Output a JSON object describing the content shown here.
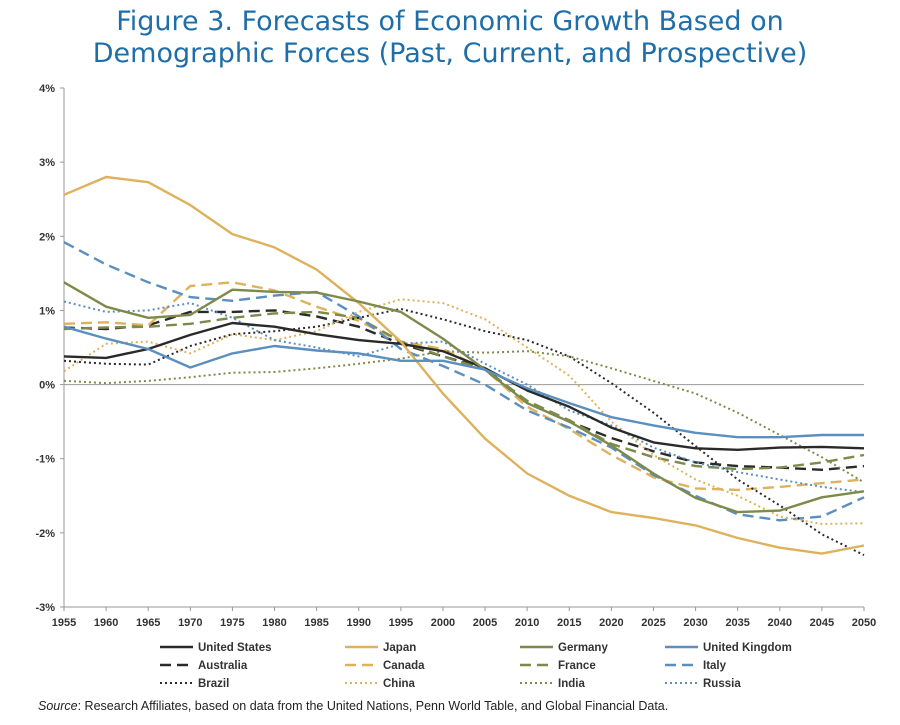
{
  "title_line1": "Figure 3. Forecasts of Economic Growth Based on",
  "title_line2": "Demographic Forces (Past, Current, and Prospective)",
  "source_label": "Source",
  "source_text": ": Research Affiliates, based on data from the United Nations, Penn World Table, and Global Financial Data.",
  "chart_data": {
    "type": "line",
    "x": [
      1955,
      1960,
      1965,
      1970,
      1975,
      1980,
      1985,
      1990,
      1995,
      2000,
      2005,
      2010,
      2015,
      2020,
      2025,
      2030,
      2035,
      2040,
      2045,
      2050
    ],
    "ylim": [
      -3,
      4
    ],
    "y_ticks": [
      4,
      3,
      2,
      1,
      0,
      -1,
      -2,
      -3
    ],
    "y_tick_labels": [
      "4%",
      "3%",
      "2%",
      "1%",
      "0%",
      "-1%",
      "-2%",
      "-3%"
    ],
    "x_tick_labels": [
      "1955",
      "1960",
      "1965",
      "1970",
      "1975",
      "1980",
      "1985",
      "1990",
      "1995",
      "2000",
      "2005",
      "2010",
      "2015",
      "2020",
      "2025",
      "2030",
      "2035",
      "2040",
      "2045",
      "2050"
    ],
    "grid": false,
    "legend_position": "bottom",
    "series": [
      {
        "name": "United States",
        "color": "#2a2a2a",
        "dash": "solid",
        "values": [
          0.38,
          0.36,
          0.48,
          0.67,
          0.83,
          0.78,
          0.68,
          0.6,
          0.55,
          0.45,
          0.22,
          -0.08,
          -0.3,
          -0.58,
          -0.78,
          -0.86,
          -0.88,
          -0.85,
          -0.84,
          -0.86
        ]
      },
      {
        "name": "Japan",
        "color": "#deb15c",
        "dash": "solid",
        "values": [
          2.56,
          2.8,
          2.73,
          2.42,
          2.03,
          1.85,
          1.55,
          1.1,
          0.58,
          -0.12,
          -0.73,
          -1.2,
          -1.5,
          -1.72,
          -1.8,
          -1.9,
          -2.07,
          -2.2,
          -2.28,
          -2.17
        ]
      },
      {
        "name": "Germany",
        "color": "#7d8a4b",
        "dash": "solid",
        "values": [
          1.38,
          1.05,
          0.9,
          0.94,
          1.28,
          1.25,
          1.24,
          1.12,
          0.98,
          0.62,
          0.2,
          -0.25,
          -0.5,
          -0.82,
          -1.2,
          -1.53,
          -1.72,
          -1.7,
          -1.52,
          -1.44
        ]
      },
      {
        "name": "United Kingdom",
        "color": "#5a8fc0",
        "dash": "solid",
        "values": [
          0.78,
          0.62,
          0.48,
          0.23,
          0.42,
          0.52,
          0.46,
          0.42,
          0.32,
          0.32,
          0.2,
          -0.05,
          -0.25,
          -0.44,
          -0.55,
          -0.65,
          -0.71,
          -0.71,
          -0.68,
          -0.68
        ]
      },
      {
        "name": "Australia",
        "color": "#2a2a2a",
        "dash": "dash",
        "values": [
          0.77,
          0.75,
          0.8,
          0.98,
          0.98,
          1.0,
          0.92,
          0.78,
          0.55,
          0.38,
          0.22,
          -0.25,
          -0.5,
          -0.72,
          -0.9,
          -1.05,
          -1.1,
          -1.12,
          -1.15,
          -1.1
        ]
      },
      {
        "name": "Canada",
        "color": "#deb15c",
        "dash": "dash",
        "values": [
          0.82,
          0.84,
          0.8,
          1.33,
          1.38,
          1.27,
          1.05,
          0.86,
          0.58,
          0.48,
          0.2,
          -0.3,
          -0.6,
          -0.95,
          -1.25,
          -1.4,
          -1.42,
          -1.38,
          -1.33,
          -1.28
        ]
      },
      {
        "name": "France",
        "color": "#7d8a4b",
        "dash": "dash",
        "values": [
          0.75,
          0.77,
          0.78,
          0.82,
          0.9,
          0.96,
          0.98,
          0.9,
          0.58,
          0.38,
          0.2,
          -0.22,
          -0.48,
          -0.8,
          -0.98,
          -1.1,
          -1.14,
          -1.12,
          -1.05,
          -0.95
        ]
      },
      {
        "name": "Italy",
        "color": "#5a8fc0",
        "dash": "dash",
        "values": [
          1.92,
          1.62,
          1.38,
          1.18,
          1.13,
          1.2,
          1.25,
          0.92,
          0.48,
          0.25,
          0.0,
          -0.35,
          -0.58,
          -0.85,
          -1.22,
          -1.5,
          -1.75,
          -1.83,
          -1.78,
          -1.52
        ]
      },
      {
        "name": "Brazil",
        "color": "#2a2a2a",
        "dash": "dot",
        "values": [
          0.32,
          0.28,
          0.27,
          0.52,
          0.68,
          0.72,
          0.78,
          0.9,
          1.02,
          0.88,
          0.72,
          0.6,
          0.38,
          0.02,
          -0.38,
          -0.83,
          -1.28,
          -1.63,
          -2.02,
          -2.3
        ]
      },
      {
        "name": "China",
        "color": "#deb15c",
        "dash": "dot",
        "values": [
          0.18,
          0.55,
          0.58,
          0.42,
          0.68,
          0.6,
          0.72,
          0.98,
          1.15,
          1.1,
          0.88,
          0.5,
          0.12,
          -0.5,
          -0.95,
          -1.28,
          -1.5,
          -1.78,
          -1.88,
          -1.87
        ]
      },
      {
        "name": "India",
        "color": "#7d8a4b",
        "dash": "dot",
        "values": [
          0.05,
          0.02,
          0.05,
          0.1,
          0.16,
          0.17,
          0.22,
          0.28,
          0.35,
          0.45,
          0.43,
          0.45,
          0.38,
          0.22,
          0.05,
          -0.12,
          -0.38,
          -0.68,
          -0.98,
          -1.32
        ]
      },
      {
        "name": "Russia",
        "color": "#5a8fc0",
        "dash": "dot",
        "values": [
          1.12,
          0.98,
          1.0,
          1.1,
          0.9,
          0.6,
          0.5,
          0.38,
          0.55,
          0.58,
          0.28,
          0.0,
          -0.35,
          -0.55,
          -0.85,
          -1.05,
          -1.18,
          -1.28,
          -1.38,
          -1.45
        ]
      }
    ]
  }
}
